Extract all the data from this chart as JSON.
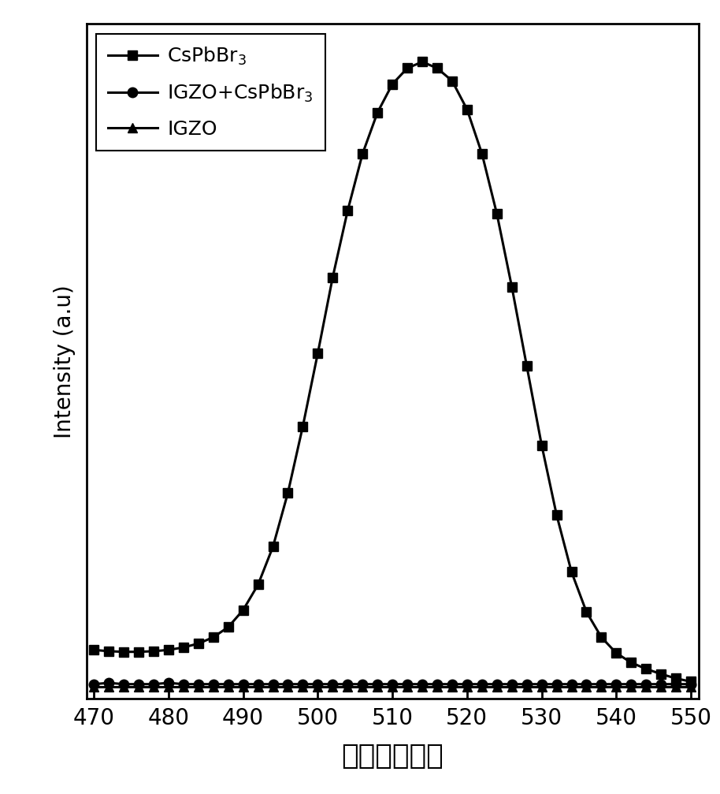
{
  "cspbbr3_x": [
    470,
    472,
    474,
    476,
    478,
    480,
    482,
    484,
    486,
    488,
    490,
    492,
    494,
    496,
    498,
    500,
    502,
    504,
    506,
    508,
    510,
    512,
    514,
    516,
    518,
    520,
    522,
    524,
    526,
    528,
    530,
    532,
    534,
    536,
    538,
    540,
    542,
    544,
    546,
    548,
    550
  ],
  "cspbbr3_y": [
    0.062,
    0.06,
    0.059,
    0.059,
    0.06,
    0.062,
    0.066,
    0.072,
    0.082,
    0.098,
    0.125,
    0.165,
    0.225,
    0.31,
    0.415,
    0.53,
    0.65,
    0.755,
    0.845,
    0.91,
    0.955,
    0.98,
    0.99,
    0.98,
    0.96,
    0.915,
    0.845,
    0.75,
    0.635,
    0.51,
    0.385,
    0.275,
    0.185,
    0.122,
    0.082,
    0.057,
    0.042,
    0.032,
    0.024,
    0.017,
    0.012
  ],
  "igzo_cspbbr3_x": [
    470,
    472,
    474,
    476,
    478,
    480,
    482,
    484,
    486,
    488,
    490,
    492,
    494,
    496,
    498,
    500,
    502,
    504,
    506,
    508,
    510,
    512,
    514,
    516,
    518,
    520,
    522,
    524,
    526,
    528,
    530,
    532,
    534,
    536,
    538,
    540,
    542,
    544,
    546,
    548,
    550
  ],
  "igzo_cspbbr3_y": [
    0.008,
    0.01,
    0.008,
    0.008,
    0.008,
    0.01,
    0.008,
    0.008,
    0.008,
    0.008,
    0.008,
    0.008,
    0.008,
    0.008,
    0.008,
    0.008,
    0.008,
    0.008,
    0.008,
    0.008,
    0.008,
    0.008,
    0.008,
    0.008,
    0.008,
    0.008,
    0.008,
    0.008,
    0.008,
    0.008,
    0.008,
    0.008,
    0.008,
    0.008,
    0.008,
    0.008,
    0.008,
    0.008,
    0.008,
    0.008,
    0.008
  ],
  "igzo_x": [
    470,
    472,
    474,
    476,
    478,
    480,
    482,
    484,
    486,
    488,
    490,
    492,
    494,
    496,
    498,
    500,
    502,
    504,
    506,
    508,
    510,
    512,
    514,
    516,
    518,
    520,
    522,
    524,
    526,
    528,
    530,
    532,
    534,
    536,
    538,
    540,
    542,
    544,
    546,
    548,
    550
  ],
  "igzo_y": [
    0.004,
    0.004,
    0.004,
    0.004,
    0.004,
    0.004,
    0.004,
    0.004,
    0.004,
    0.004,
    0.004,
    0.004,
    0.004,
    0.004,
    0.004,
    0.004,
    0.004,
    0.004,
    0.004,
    0.004,
    0.004,
    0.004,
    0.004,
    0.004,
    0.004,
    0.004,
    0.004,
    0.004,
    0.004,
    0.004,
    0.004,
    0.004,
    0.004,
    0.004,
    0.004,
    0.004,
    0.004,
    0.004,
    0.004,
    0.004,
    0.004
  ],
  "line_color": "#000000",
  "xlabel": "波长（纳米）",
  "ylabel": "Intensity (a.u)",
  "xlim": [
    469,
    551
  ],
  "ylim": [
    -0.015,
    1.05
  ],
  "xticks": [
    470,
    480,
    490,
    500,
    510,
    520,
    530,
    540,
    550
  ],
  "legend_labels": [
    "CsPbBr$_3$",
    "IGZO+CsPbBr$_3$",
    "IGZO"
  ],
  "background_color": "#ffffff",
  "linewidth": 2.2,
  "markersize": 9,
  "xlabel_fontsize": 26,
  "ylabel_fontsize": 20,
  "tick_fontsize": 20,
  "legend_fontsize": 18
}
